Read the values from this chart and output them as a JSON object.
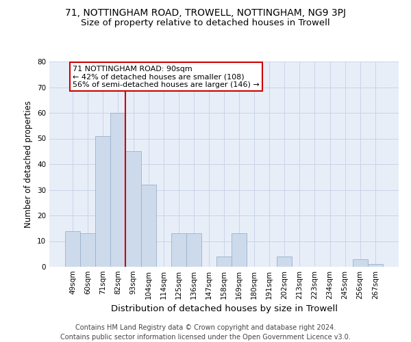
{
  "title1": "71, NOTTINGHAM ROAD, TROWELL, NOTTINGHAM, NG9 3PJ",
  "title2": "Size of property relative to detached houses in Trowell",
  "xlabel": "Distribution of detached houses by size in Trowell",
  "ylabel": "Number of detached properties",
  "footer": "Contains HM Land Registry data © Crown copyright and database right 2024.\nContains public sector information licensed under the Open Government Licence v3.0.",
  "bins": [
    "49sqm",
    "60sqm",
    "71sqm",
    "82sqm",
    "93sqm",
    "104sqm",
    "114sqm",
    "125sqm",
    "136sqm",
    "147sqm",
    "158sqm",
    "169sqm",
    "180sqm",
    "191sqm",
    "202sqm",
    "213sqm",
    "223sqm",
    "234sqm",
    "245sqm",
    "256sqm",
    "267sqm"
  ],
  "values": [
    14,
    13,
    51,
    60,
    45,
    32,
    0,
    13,
    13,
    0,
    4,
    13,
    0,
    0,
    4,
    0,
    0,
    0,
    0,
    3,
    1
  ],
  "bar_color": "#ccdaec",
  "bar_edge_color": "#9ab0cc",
  "vline_color": "#cc0000",
  "vline_pos": 3.5,
  "annotation_box_text": "71 NOTTINGHAM ROAD: 90sqm\n← 42% of detached houses are smaller (108)\n56% of semi-detached houses are larger (146) →",
  "annotation_box_color": "#cc0000",
  "ylim": [
    0,
    80
  ],
  "yticks": [
    0,
    10,
    20,
    30,
    40,
    50,
    60,
    70,
    80
  ],
  "grid_color": "#c8d4e8",
  "bg_color": "#e8eef8",
  "title1_fontsize": 10,
  "title2_fontsize": 9.5,
  "xlabel_fontsize": 9.5,
  "ylabel_fontsize": 8.5,
  "tick_fontsize": 7.5,
  "footer_fontsize": 7.0,
  "ann_fontsize": 8.0
}
